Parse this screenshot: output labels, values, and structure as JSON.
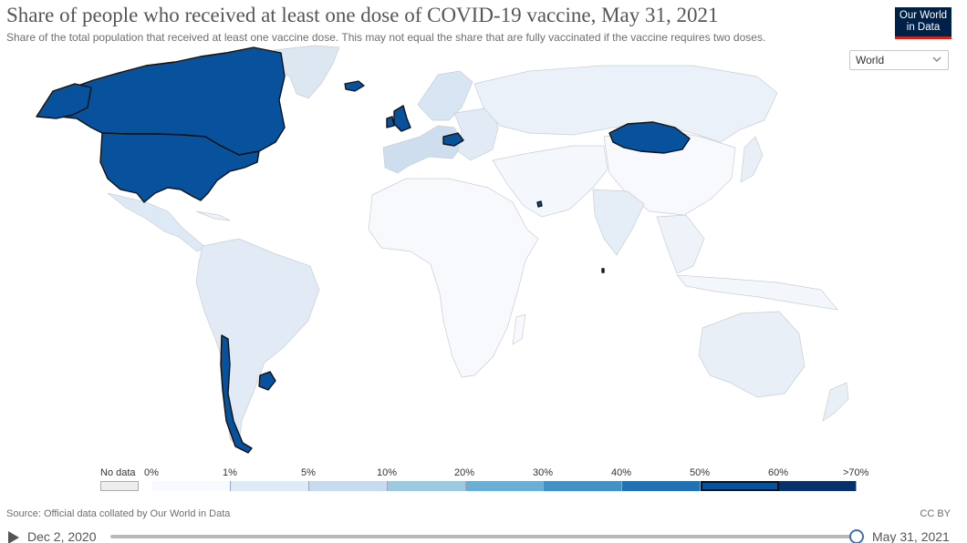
{
  "header": {
    "title": "Share of people who received at least one dose of COVID-19 vaccine, May 31, 2021",
    "subtitle": "Share of the total population that received at least one vaccine dose. This may not equal the share that are fully vaccinated if the vaccine requires two doses."
  },
  "logo": {
    "line1": "Our World",
    "line2": "in Data"
  },
  "region_select": {
    "value": "World",
    "icon": "chevron-down-icon"
  },
  "colors": {
    "no_data": "#eeeeee",
    "bins": [
      "#f7fbff",
      "#deebf7",
      "#c6dbef",
      "#9ecae1",
      "#6baed6",
      "#4292c6",
      "#2171b5",
      "#08519c",
      "#08306b"
    ],
    "highlight_bin": "#08519c",
    "border": "#222222"
  },
  "legend": {
    "no_data_label": "No data",
    "tick_labels": [
      "0%",
      "1%",
      "5%",
      "10%",
      "20%",
      "30%",
      "40%",
      "50%",
      "60%",
      ">70%"
    ],
    "highlighted_bin": "50%–60%"
  },
  "map": {
    "highlighted_bin": "50%–60%",
    "highlighted_countries": [
      "Canada",
      "United States",
      "Chile",
      "Uruguay",
      "United Kingdom",
      "Hungary",
      "Mongolia",
      "Bahrain",
      "Maldives"
    ]
  },
  "footer": {
    "source": "Source: Official data collated by Our World in Data",
    "license": "CC BY"
  },
  "timeline": {
    "start": "Dec 2, 2020",
    "end": "May 31, 2021",
    "position": 1.0
  }
}
